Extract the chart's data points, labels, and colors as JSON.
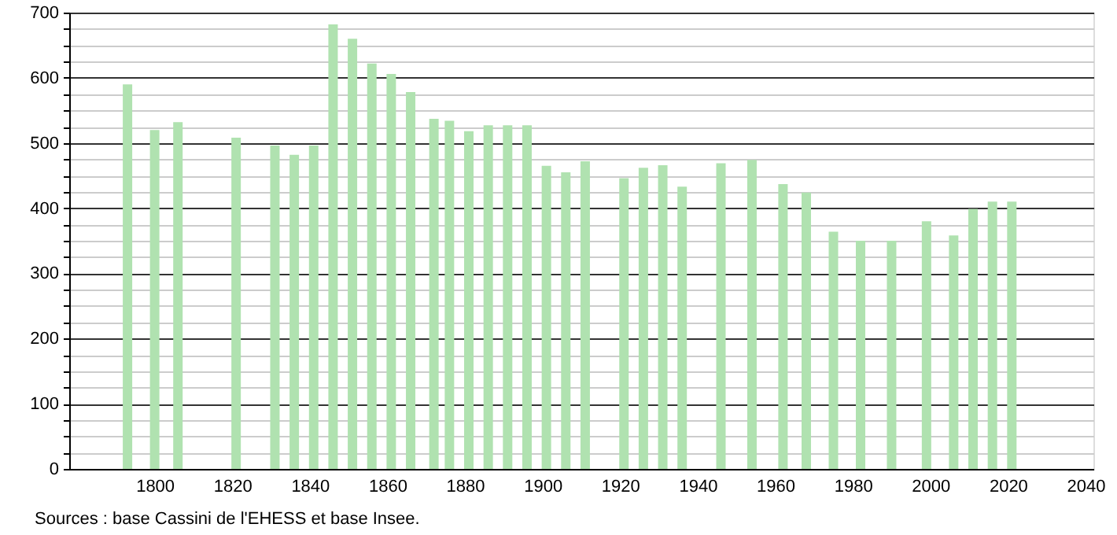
{
  "chart_data": {
    "type": "bar",
    "x": [
      1793,
      1800,
      1806,
      1821,
      1831,
      1836,
      1841,
      1846,
      1851,
      1856,
      1861,
      1866,
      1872,
      1876,
      1881,
      1886,
      1891,
      1896,
      1901,
      1906,
      1911,
      1921,
      1926,
      1931,
      1936,
      1946,
      1954,
      1962,
      1968,
      1975,
      1982,
      1990,
      1999,
      2006,
      2011,
      2016,
      2021
    ],
    "values": [
      590,
      520,
      532,
      508,
      496,
      482,
      496,
      682,
      660,
      622,
      606,
      578,
      537,
      534,
      518,
      527,
      527,
      527,
      465,
      455,
      472,
      446,
      462,
      466,
      433,
      469,
      474,
      437,
      424,
      364,
      350,
      350,
      380,
      358,
      399,
      410,
      410
    ],
    "color": "#b0e2b0",
    "xlim": [
      1780,
      2040
    ],
    "xticks": [
      1800,
      1820,
      1840,
      1860,
      1880,
      1900,
      1920,
      1940,
      1960,
      1980,
      2000,
      2020,
      2040
    ],
    "ylim": [
      0,
      700
    ],
    "yticks": [
      0,
      {
        "value": 25,
        "label": null
      },
      {
        "value": 50,
        "label": null
      },
      {
        "value": 75,
        "label": null
      },
      100,
      {
        "value": 125,
        "label": null
      },
      {
        "value": 150,
        "label": null
      },
      {
        "value": 175,
        "label": null
      },
      200,
      {
        "value": 225,
        "label": null
      },
      {
        "value": 250,
        "label": null
      },
      {
        "value": 275,
        "label": null
      },
      300,
      {
        "value": 325,
        "label": null
      },
      {
        "value": 350,
        "label": null
      },
      {
        "value": 375,
        "label": null
      },
      400,
      {
        "value": 425,
        "label": null
      },
      {
        "value": 450,
        "label": null
      },
      {
        "value": 475,
        "label": null
      },
      500,
      {
        "value": 525,
        "label": null
      },
      {
        "value": 550,
        "label": null
      },
      {
        "value": 575,
        "label": null
      },
      600,
      {
        "value": 625,
        "label": null
      },
      {
        "value": 650,
        "label": null
      },
      {
        "value": 675,
        "label": null
      },
      700
    ],
    "grid": "y",
    "annotations": [
      "Sources : base Cassini de l'EHESS et base Insee."
    ]
  }
}
